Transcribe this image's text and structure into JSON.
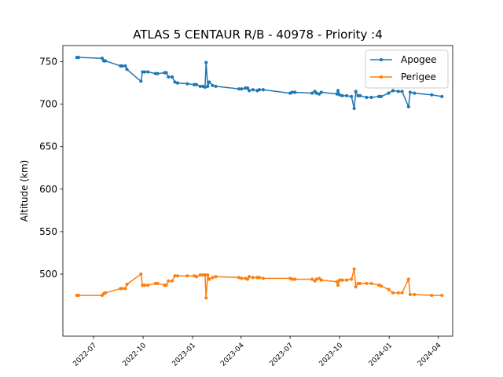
{
  "chart_data": {
    "type": "line",
    "title": "ATLAS 5 CENTAUR R/B - 40978 - Priority :4",
    "xlabel": "",
    "ylabel": "Altitude (km)",
    "x_type": "date",
    "xlim": [
      "2022-05-05",
      "2024-04-28"
    ],
    "ylim": [
      427,
      769
    ],
    "yticks": [
      500,
      550,
      600,
      650,
      700,
      750
    ],
    "xticks": [
      "2022-07",
      "2022-10",
      "2023-01",
      "2023-04",
      "2023-07",
      "2023-10",
      "2024-01",
      "2024-04"
    ],
    "grid": false,
    "legend_position": "top-right",
    "series": [
      {
        "name": "Apogee",
        "color": "#1f77b4",
        "points": [
          [
            "2022-05-31",
            755
          ],
          [
            "2022-06-03",
            755
          ],
          [
            "2022-07-17",
            754
          ],
          [
            "2022-07-20",
            751
          ],
          [
            "2022-07-23",
            751
          ],
          [
            "2022-08-20",
            745
          ],
          [
            "2022-08-23",
            745
          ],
          [
            "2022-08-29",
            745
          ],
          [
            "2022-09-01",
            741
          ],
          [
            "2022-09-27",
            727
          ],
          [
            "2022-09-30",
            738
          ],
          [
            "2022-10-04",
            738
          ],
          [
            "2022-10-10",
            738
          ],
          [
            "2022-10-24",
            736
          ],
          [
            "2022-10-28",
            736
          ],
          [
            "2022-11-10",
            737
          ],
          [
            "2022-11-13",
            737
          ],
          [
            "2022-11-17",
            732
          ],
          [
            "2022-11-24",
            732
          ],
          [
            "2022-11-29",
            726
          ],
          [
            "2022-12-04",
            725
          ],
          [
            "2022-12-22",
            724
          ],
          [
            "2023-01-04",
            723
          ],
          [
            "2023-01-08",
            723
          ],
          [
            "2023-01-15",
            721
          ],
          [
            "2023-01-20",
            721
          ],
          [
            "2023-01-24",
            720
          ],
          [
            "2023-01-26",
            749
          ],
          [
            "2023-01-29",
            721
          ],
          [
            "2023-02-01",
            726
          ],
          [
            "2023-02-07",
            722
          ],
          [
            "2023-02-13",
            721
          ],
          [
            "2023-03-28",
            718
          ],
          [
            "2023-04-02",
            718
          ],
          [
            "2023-04-09",
            719
          ],
          [
            "2023-04-13",
            719
          ],
          [
            "2023-04-16",
            716
          ],
          [
            "2023-04-23",
            717
          ],
          [
            "2023-05-01",
            716
          ],
          [
            "2023-05-05",
            717
          ],
          [
            "2023-05-12",
            717
          ],
          [
            "2023-07-01",
            713
          ],
          [
            "2023-07-05",
            714
          ],
          [
            "2023-07-10",
            714
          ],
          [
            "2023-08-11",
            713
          ],
          [
            "2023-08-16",
            715
          ],
          [
            "2023-08-19",
            713
          ],
          [
            "2023-08-24",
            712
          ],
          [
            "2023-08-28",
            714
          ],
          [
            "2023-09-26",
            712
          ],
          [
            "2023-09-28",
            716
          ],
          [
            "2023-10-01",
            711
          ],
          [
            "2023-10-06",
            710
          ],
          [
            "2023-10-14",
            710
          ],
          [
            "2023-10-23",
            709
          ],
          [
            "2023-10-28",
            695
          ],
          [
            "2023-10-31",
            715
          ],
          [
            "2023-11-04",
            710
          ],
          [
            "2023-11-08",
            710
          ],
          [
            "2023-11-20",
            708
          ],
          [
            "2023-11-29",
            708
          ],
          [
            "2023-12-13",
            709
          ],
          [
            "2023-12-17",
            709
          ],
          [
            "2023-12-31",
            713
          ],
          [
            "2024-01-08",
            716
          ],
          [
            "2024-01-18",
            715
          ],
          [
            "2024-01-25",
            715
          ],
          [
            "2024-02-06",
            697
          ],
          [
            "2024-02-09",
            714
          ],
          [
            "2024-02-17",
            713
          ],
          [
            "2024-03-20",
            711
          ],
          [
            "2024-04-08",
            709
          ]
        ]
      },
      {
        "name": "Perigee",
        "color": "#ff7f0e",
        "points": [
          [
            "2022-05-31",
            475
          ],
          [
            "2022-06-03",
            475
          ],
          [
            "2022-07-17",
            475
          ],
          [
            "2022-07-20",
            477
          ],
          [
            "2022-07-23",
            478
          ],
          [
            "2022-08-20",
            483
          ],
          [
            "2022-08-23",
            483
          ],
          [
            "2022-08-29",
            483
          ],
          [
            "2022-09-01",
            488
          ],
          [
            "2022-09-27",
            500
          ],
          [
            "2022-09-30",
            487
          ],
          [
            "2022-10-04",
            487
          ],
          [
            "2022-10-10",
            487
          ],
          [
            "2022-10-24",
            489
          ],
          [
            "2022-10-28",
            489
          ],
          [
            "2022-11-10",
            487
          ],
          [
            "2022-11-13",
            487
          ],
          [
            "2022-11-17",
            492
          ],
          [
            "2022-11-24",
            492
          ],
          [
            "2022-11-29",
            498
          ],
          [
            "2022-12-04",
            498
          ],
          [
            "2022-12-22",
            498
          ],
          [
            "2023-01-04",
            498
          ],
          [
            "2023-01-08",
            497
          ],
          [
            "2023-01-15",
            499
          ],
          [
            "2023-01-20",
            499
          ],
          [
            "2023-01-24",
            499
          ],
          [
            "2023-01-26",
            472
          ],
          [
            "2023-01-29",
            499
          ],
          [
            "2023-02-01",
            494
          ],
          [
            "2023-02-07",
            496
          ],
          [
            "2023-02-13",
            497
          ],
          [
            "2023-03-28",
            496
          ],
          [
            "2023-04-02",
            495
          ],
          [
            "2023-04-09",
            495
          ],
          [
            "2023-04-13",
            494
          ],
          [
            "2023-04-16",
            497
          ],
          [
            "2023-04-23",
            496
          ],
          [
            "2023-05-01",
            496
          ],
          [
            "2023-05-05",
            496
          ],
          [
            "2023-05-12",
            495
          ],
          [
            "2023-07-01",
            495
          ],
          [
            "2023-07-05",
            494
          ],
          [
            "2023-07-10",
            494
          ],
          [
            "2023-08-11",
            494
          ],
          [
            "2023-08-16",
            492
          ],
          [
            "2023-08-19",
            494
          ],
          [
            "2023-08-24",
            495
          ],
          [
            "2023-08-28",
            493
          ],
          [
            "2023-09-26",
            491
          ],
          [
            "2023-09-28",
            487
          ],
          [
            "2023-10-01",
            493
          ],
          [
            "2023-10-06",
            493
          ],
          [
            "2023-10-14",
            493
          ],
          [
            "2023-10-23",
            494
          ],
          [
            "2023-10-28",
            506
          ],
          [
            "2023-10-31",
            485
          ],
          [
            "2023-11-04",
            489
          ],
          [
            "2023-11-08",
            489
          ],
          [
            "2023-11-20",
            489
          ],
          [
            "2023-11-29",
            489
          ],
          [
            "2023-12-13",
            487
          ],
          [
            "2023-12-17",
            486
          ],
          [
            "2023-12-31",
            482
          ],
          [
            "2024-01-08",
            478
          ],
          [
            "2024-01-18",
            478
          ],
          [
            "2024-01-25",
            478
          ],
          [
            "2024-02-06",
            494
          ],
          [
            "2024-02-09",
            476
          ],
          [
            "2024-02-17",
            476
          ],
          [
            "2024-03-20",
            475
          ],
          [
            "2024-04-08",
            475
          ]
        ]
      }
    ]
  }
}
